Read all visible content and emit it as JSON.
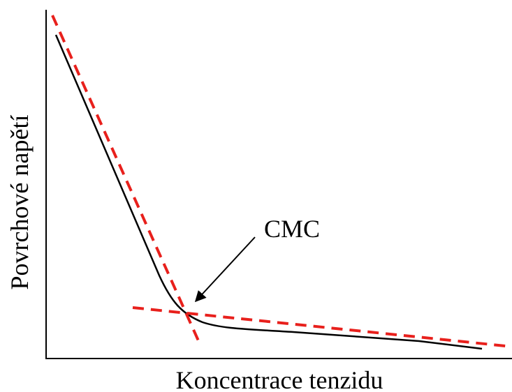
{
  "x_axis_label": "Koncentrace tenzidu",
  "y_axis_label": "Povrchové napětí",
  "annotation": "CMC"
}
